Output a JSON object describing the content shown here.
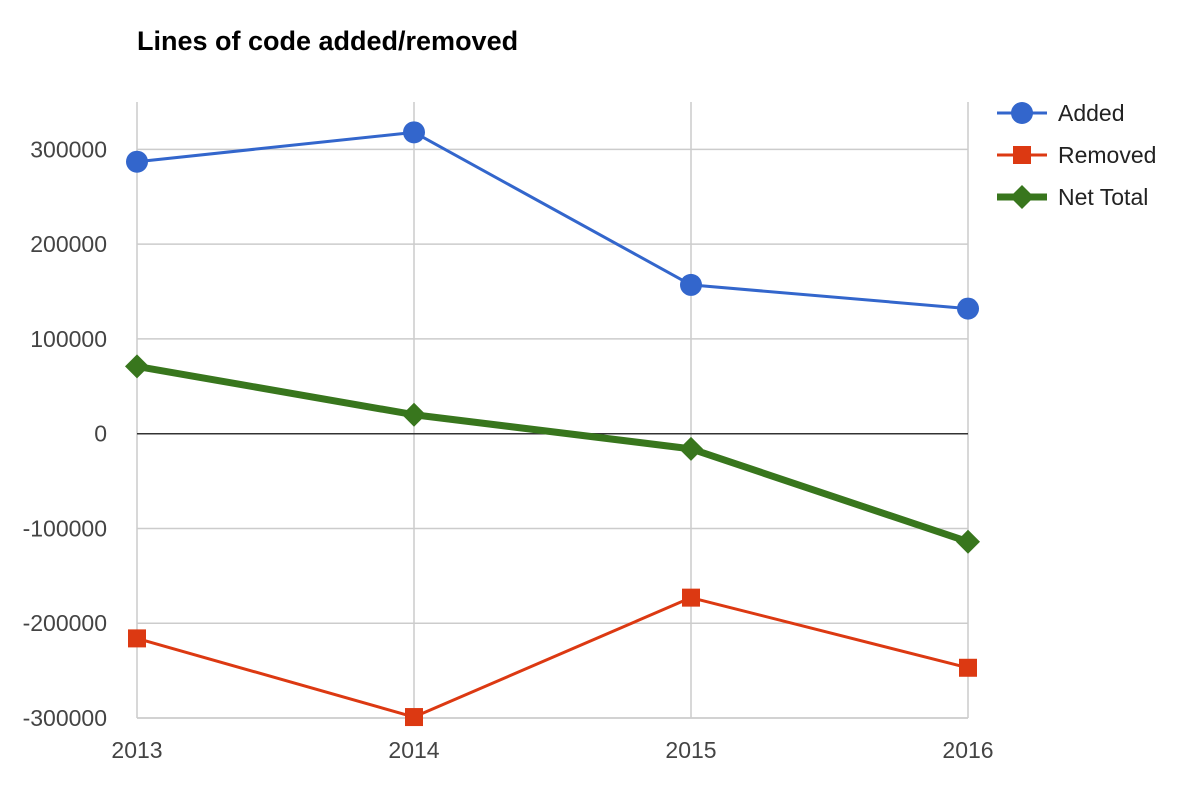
{
  "chart_data": {
    "type": "line",
    "title": "Lines of code added/removed",
    "xlabel": "",
    "ylabel": "",
    "x": [
      "2013",
      "2014",
      "2015",
      "2016"
    ],
    "ylim": [
      -300000,
      350000
    ],
    "yticks": [
      "300000",
      "200000",
      "100000",
      "0",
      "-100000",
      "-200000",
      "-300000"
    ],
    "grid": true,
    "legend_position": "right",
    "series": [
      {
        "name": "Added",
        "values": [
          287000,
          318000,
          157000,
          132000
        ],
        "color": "#3366cc",
        "marker": "circle"
      },
      {
        "name": "Removed",
        "values": [
          -216000,
          -299000,
          -173000,
          -247000
        ],
        "color": "#dc3912",
        "marker": "square"
      },
      {
        "name": "Net Total",
        "values": [
          71000,
          20000,
          -16000,
          -114000
        ],
        "color": "#38761d",
        "marker": "diamond"
      }
    ]
  }
}
